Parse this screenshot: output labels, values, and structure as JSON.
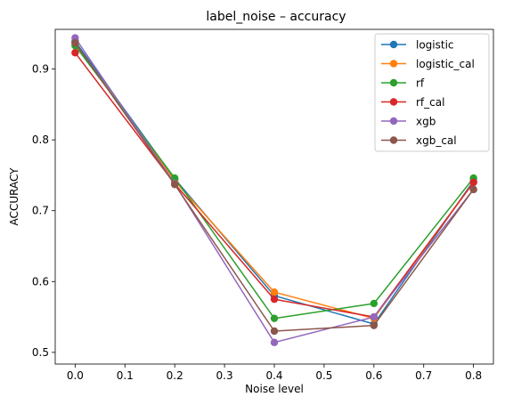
{
  "chart_data": {
    "type": "line",
    "title": "label_noise – accuracy",
    "xlabel": "Noise level",
    "ylabel": "ACCURACY",
    "x": [
      0.0,
      0.2,
      0.4,
      0.6,
      0.8
    ],
    "xticks": [
      "0.0",
      "0.1",
      "0.2",
      "0.3",
      "0.4",
      "0.5",
      "0.6",
      "0.7",
      "0.8"
    ],
    "yticks": [
      "0.5",
      "0.6",
      "0.7",
      "0.8",
      "0.9"
    ],
    "xlim": [
      -0.04,
      0.84
    ],
    "ylim": [
      0.4835,
      0.956
    ],
    "grid": false,
    "legend_position": "top-right",
    "series": [
      {
        "name": "logistic",
        "color": "#1f77b4",
        "values": [
          0.939,
          0.745,
          0.58,
          0.54,
          0.742
        ]
      },
      {
        "name": "logistic_cal",
        "color": "#ff7f0e",
        "values": [
          0.936,
          0.742,
          0.585,
          0.548,
          0.74
        ]
      },
      {
        "name": "rf",
        "color": "#2ca02c",
        "values": [
          0.933,
          0.746,
          0.548,
          0.569,
          0.746
        ]
      },
      {
        "name": "rf_cal",
        "color": "#d62728",
        "values": [
          0.923,
          0.738,
          0.575,
          0.55,
          0.74
        ]
      },
      {
        "name": "xgb",
        "color": "#9467bd",
        "values": [
          0.944,
          0.738,
          0.514,
          0.55,
          0.73
        ]
      },
      {
        "name": "xgb_cal",
        "color": "#8c564b",
        "values": [
          0.937,
          0.737,
          0.53,
          0.538,
          0.73
        ]
      }
    ]
  }
}
